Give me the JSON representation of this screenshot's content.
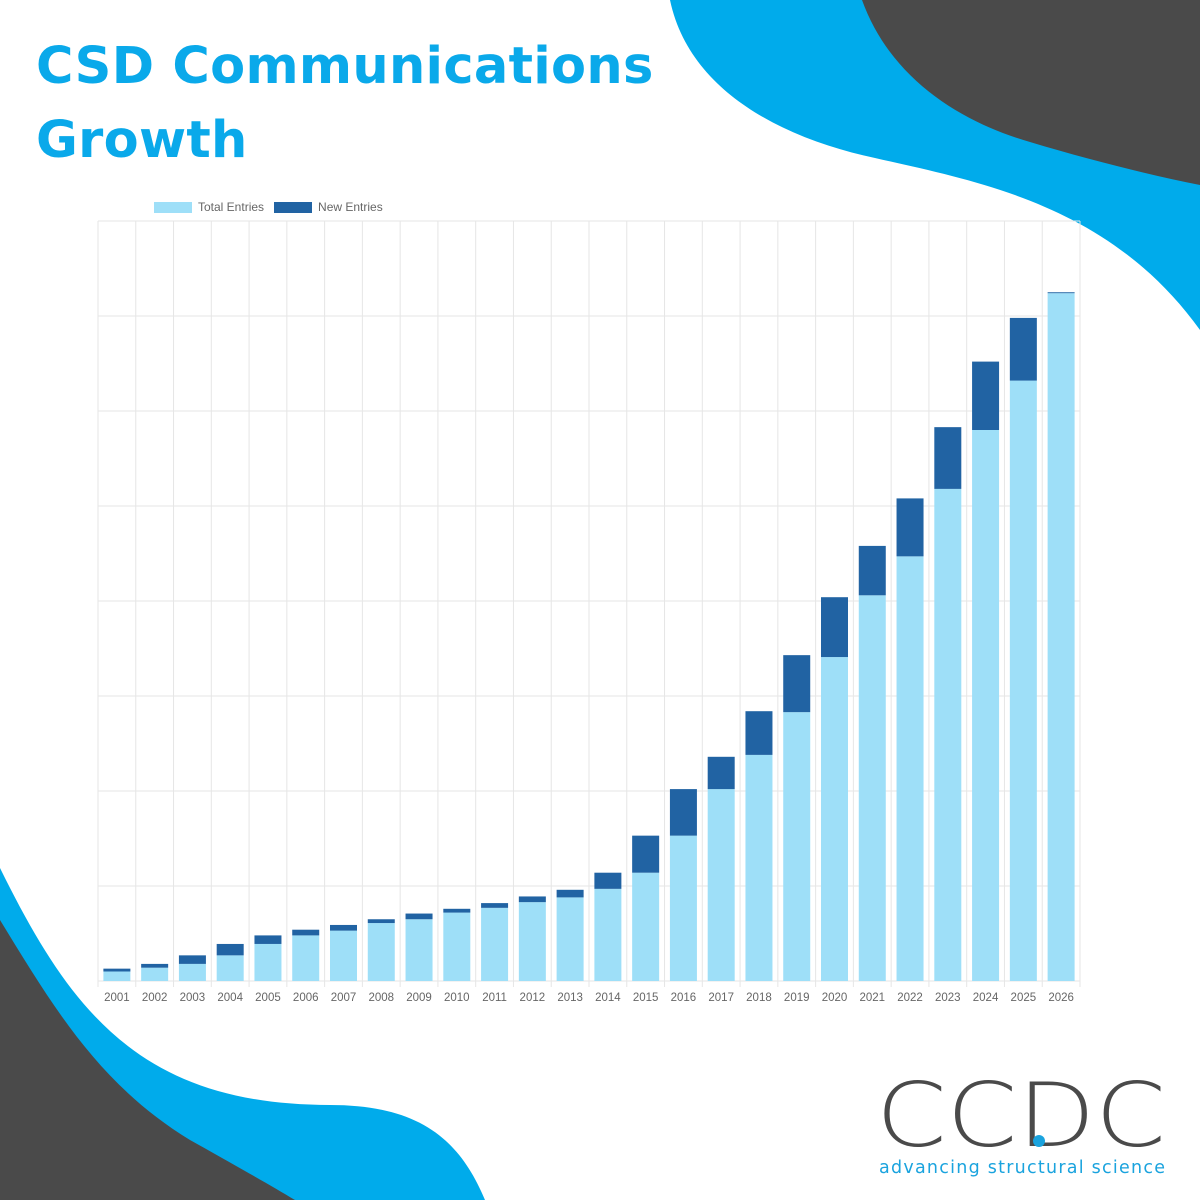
{
  "header": {
    "title_line1": "CSD Communications",
    "title_line2": "Growth"
  },
  "colors": {
    "title": "#0aa9ea",
    "swoosh_blue": "#00abeb",
    "swoosh_dark": "#4a4a4a",
    "total_entries": "#9edff8",
    "new_entries": "#2163a3"
  },
  "chart_data": {
    "type": "bar",
    "stacked": true,
    "categories": [
      "2001",
      "2002",
      "2003",
      "2004",
      "2005",
      "2006",
      "2007",
      "2008",
      "2009",
      "2010",
      "2011",
      "2012",
      "2013",
      "2014",
      "2015",
      "2016",
      "2017",
      "2018",
      "2019",
      "2020",
      "2021",
      "2022",
      "2023",
      "2024",
      "2025",
      "2026"
    ],
    "series": [
      {
        "name": "Total Entries",
        "values": [
          10,
          14,
          18,
          27,
          39,
          48,
          53,
          61,
          65,
          72,
          77,
          83,
          88,
          97,
          114,
          153,
          202,
          238,
          283,
          341,
          406,
          447,
          518,
          580,
          632,
          724
        ]
      },
      {
        "name": "New Entries",
        "values": [
          3,
          4,
          9,
          12,
          9,
          6,
          6,
          4,
          6,
          4,
          5,
          6,
          8,
          17,
          39,
          49,
          34,
          46,
          60,
          63,
          52,
          61,
          65,
          72,
          66,
          1
        ]
      }
    ],
    "ylim": [
      0,
      800
    ],
    "y_tick_labels_shown": false,
    "grid": true,
    "legend": "top-left"
  },
  "logo": {
    "wordmark": "CCDC",
    "tagline": "advancing structural science"
  }
}
